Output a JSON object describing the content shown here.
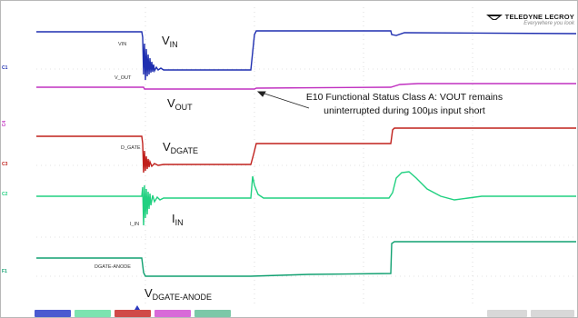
{
  "brand": {
    "name": "TELEDYNE LECROY",
    "tagline": "Everywhere you look"
  },
  "labels": {
    "vin_main": "V",
    "vin_sub": "IN",
    "vout_main": "V",
    "vout_sub": "OUT",
    "vdgate_main": "V",
    "vdgate_sub": "DGATE",
    "iin_main": "I",
    "iin_sub": "IN",
    "vdgate_anode_main": "V",
    "vdgate_anode_sub": "DGATE-ANODE"
  },
  "trace_tags": {
    "vin": "VIN",
    "vout": "V_OUT",
    "dgate": "D_GATE",
    "iin": "I_IN",
    "dgate_anode": "DGATE-ANODE"
  },
  "annotation": {
    "line1": "E10 Functional Status Class A: VOUT remains",
    "line2": "uninterrupted during 100µs input short"
  },
  "channel_markers": {
    "c1": "C1",
    "c2": "C2",
    "c3": "C3",
    "c4": "C4",
    "f1": "F1"
  },
  "colors": {
    "vin": "#1f2fb0",
    "vout": "#c030c0",
    "vdgate": "#c0201c",
    "iin": "#20d080",
    "vdgate_anode": "#10a070",
    "grid": "#c8c8c8"
  }
}
